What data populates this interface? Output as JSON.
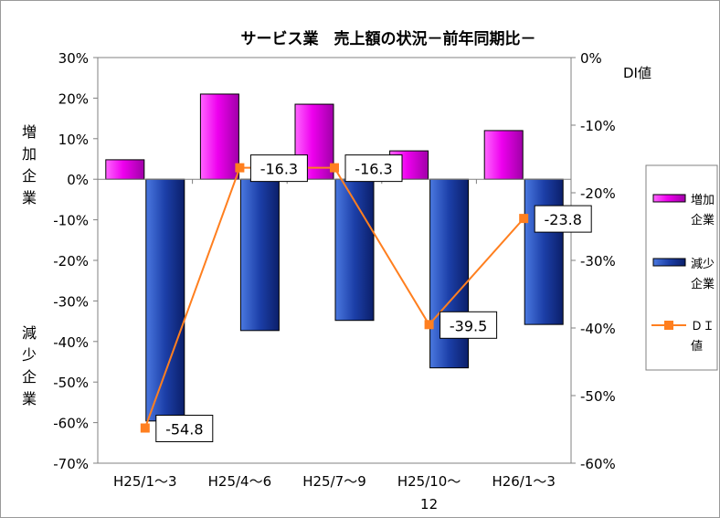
{
  "chart_data": {
    "type": "bar",
    "title": "サービス業　売上額の状況－前年同期比－",
    "categories": [
      "H25/1～3",
      "H25/4～6",
      "H25/7～9",
      "H25/10～\n12",
      "H26/1～3"
    ],
    "ylim": [
      -70,
      30
    ],
    "y_ticks": [
      "30%",
      "20%",
      "10%",
      "0%",
      "-10%",
      "-20%",
      "-30%",
      "-40%",
      "-50%",
      "-60%",
      "-70%"
    ],
    "y2label": "DI値",
    "y2lim": [
      -60,
      0
    ],
    "y2_ticks": [
      "0%",
      "-10%",
      "-20%",
      "-30%",
      "-40%",
      "-50%",
      "-60%"
    ],
    "left_annotations": {
      "upper": "増\n加\n企\n業",
      "lower": "減\n少\n企\n業"
    },
    "series": [
      {
        "name": "増加\n企業",
        "type": "bar",
        "axis": "left",
        "color": "#ee00ee",
        "values": [
          4.8,
          21.0,
          18.5,
          7.0,
          12.0
        ]
      },
      {
        "name": "減少\n企業",
        "type": "bar",
        "axis": "left",
        "color": "#1c3fa8",
        "values": [
          -59.6,
          -37.3,
          -34.8,
          -46.5,
          -35.8
        ]
      },
      {
        "name": "ＤＩ\n値",
        "type": "line",
        "axis": "right",
        "color": "#ff7f1f",
        "values": [
          -54.8,
          -16.3,
          -16.3,
          -39.5,
          -23.8
        ],
        "labels": [
          "-54.8",
          "-16.3",
          "-16.3",
          "-39.5",
          "-23.8"
        ]
      }
    ],
    "grid": false,
    "legend_position": "right"
  }
}
